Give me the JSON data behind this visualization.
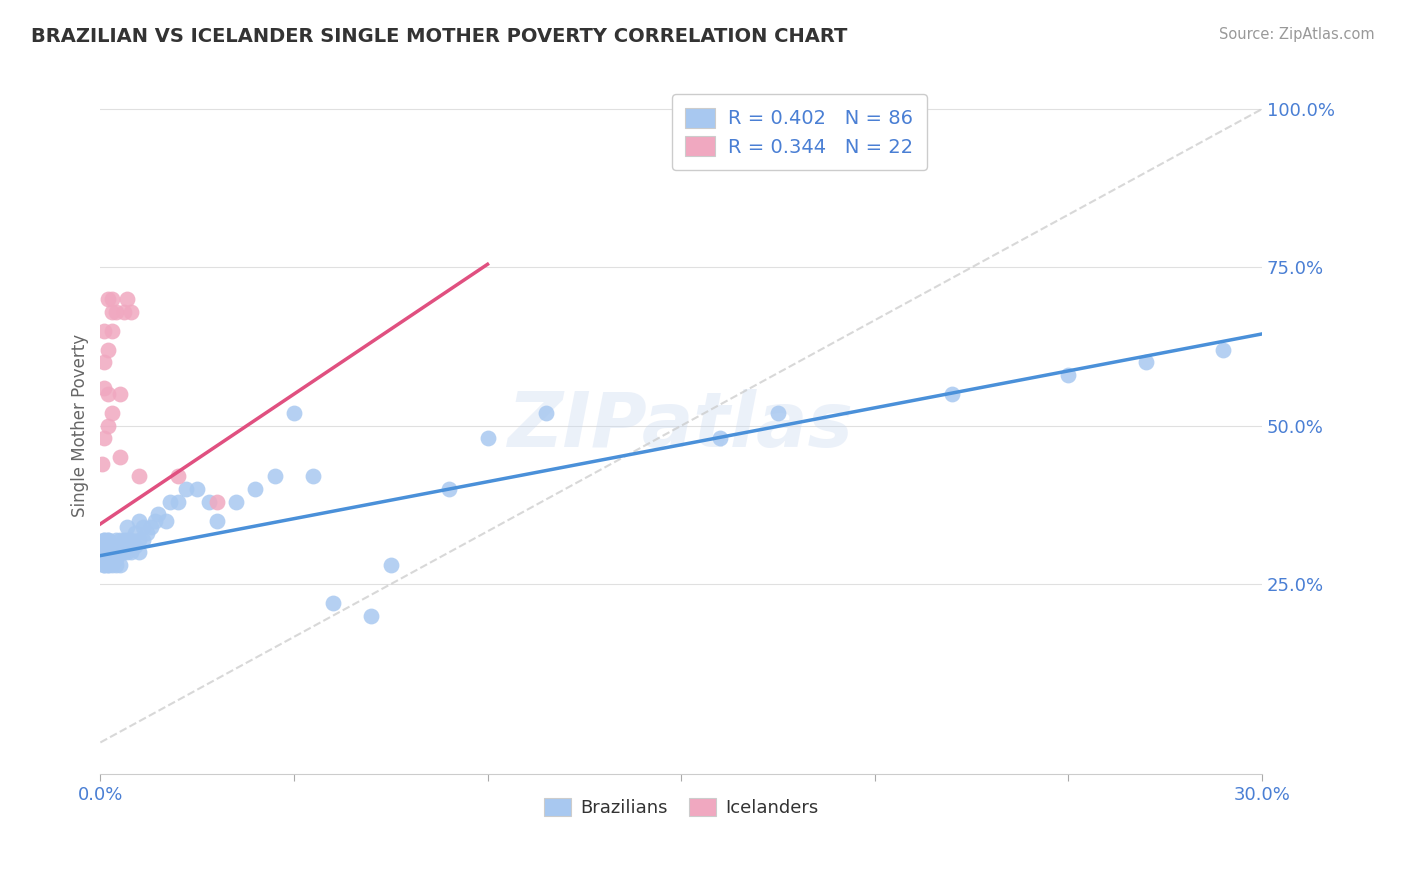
{
  "title": "BRAZILIAN VS ICELANDER SINGLE MOTHER POVERTY CORRELATION CHART",
  "source_text": "Source: ZipAtlas.com",
  "ylabel": "Single Mother Poverty",
  "watermark": "ZIPatlas",
  "xlim": [
    0.0,
    0.3
  ],
  "ylim": [
    -0.05,
    1.05
  ],
  "plot_ylim": [
    -0.05,
    1.05
  ],
  "xticks": [
    0.0,
    0.05,
    0.1,
    0.15,
    0.2,
    0.25,
    0.3
  ],
  "xticklabels": [
    "0.0%",
    "",
    "",
    "",
    "",
    "",
    "30.0%"
  ],
  "yticks_right": [
    0.25,
    0.5,
    0.75,
    1.0
  ],
  "ytick_right_labels": [
    "25.0%",
    "50.0%",
    "75.0%",
    "100.0%"
  ],
  "brazil_R": 0.402,
  "brazil_N": 86,
  "iceland_R": 0.344,
  "iceland_N": 22,
  "brazil_color": "#a8c8f0",
  "iceland_color": "#f0a8c0",
  "brazil_line_color": "#4a90d9",
  "iceland_line_color": "#e05080",
  "ref_line_color": "#c8c8c8",
  "legend_text_color": "#4a7fd4",
  "title_color": "#333333",
  "background_color": "#ffffff",
  "grid_color": "#e0e0e0",
  "brazil_line_x": [
    0.0,
    0.3
  ],
  "brazil_line_y": [
    0.295,
    0.645
  ],
  "iceland_line_x": [
    0.0,
    0.1
  ],
  "iceland_line_y": [
    0.345,
    0.755
  ],
  "ref_line_x": [
    0.0,
    0.3
  ],
  "ref_line_y": [
    0.0,
    1.0
  ],
  "brazil_scatter_x": [
    0.0005,
    0.001,
    0.001,
    0.001,
    0.001,
    0.001,
    0.001,
    0.001,
    0.001,
    0.001,
    0.001,
    0.002,
    0.002,
    0.002,
    0.002,
    0.002,
    0.002,
    0.002,
    0.002,
    0.002,
    0.002,
    0.002,
    0.003,
    0.003,
    0.003,
    0.003,
    0.003,
    0.003,
    0.003,
    0.003,
    0.004,
    0.004,
    0.004,
    0.004,
    0.004,
    0.004,
    0.004,
    0.004,
    0.005,
    0.005,
    0.005,
    0.005,
    0.005,
    0.006,
    0.006,
    0.006,
    0.007,
    0.007,
    0.007,
    0.008,
    0.008,
    0.009,
    0.009,
    0.01,
    0.01,
    0.01,
    0.011,
    0.011,
    0.012,
    0.013,
    0.014,
    0.015,
    0.017,
    0.018,
    0.02,
    0.022,
    0.025,
    0.028,
    0.03,
    0.035,
    0.04,
    0.045,
    0.05,
    0.055,
    0.06,
    0.07,
    0.075,
    0.09,
    0.1,
    0.115,
    0.16,
    0.175,
    0.22,
    0.25,
    0.27,
    0.29
  ],
  "brazil_scatter_y": [
    0.3,
    0.28,
    0.3,
    0.32,
    0.3,
    0.28,
    0.31,
    0.29,
    0.3,
    0.32,
    0.29,
    0.28,
    0.3,
    0.32,
    0.3,
    0.31,
    0.29,
    0.3,
    0.31,
    0.28,
    0.3,
    0.32,
    0.28,
    0.3,
    0.31,
    0.3,
    0.29,
    0.3,
    0.31,
    0.29,
    0.28,
    0.3,
    0.31,
    0.32,
    0.3,
    0.29,
    0.31,
    0.3,
    0.3,
    0.32,
    0.3,
    0.28,
    0.31,
    0.3,
    0.32,
    0.31,
    0.3,
    0.32,
    0.34,
    0.3,
    0.32,
    0.31,
    0.33,
    0.3,
    0.32,
    0.35,
    0.32,
    0.34,
    0.33,
    0.34,
    0.35,
    0.36,
    0.35,
    0.38,
    0.38,
    0.4,
    0.4,
    0.38,
    0.35,
    0.38,
    0.4,
    0.42,
    0.52,
    0.42,
    0.22,
    0.2,
    0.28,
    0.4,
    0.48,
    0.52,
    0.48,
    0.52,
    0.55,
    0.58,
    0.6,
    0.62
  ],
  "iceland_scatter_x": [
    0.0005,
    0.001,
    0.001,
    0.001,
    0.001,
    0.002,
    0.002,
    0.002,
    0.002,
    0.003,
    0.003,
    0.003,
    0.003,
    0.004,
    0.005,
    0.005,
    0.006,
    0.007,
    0.008,
    0.01,
    0.02,
    0.03
  ],
  "iceland_scatter_y": [
    0.44,
    0.56,
    0.6,
    0.65,
    0.48,
    0.55,
    0.62,
    0.7,
    0.5,
    0.68,
    0.52,
    0.65,
    0.7,
    0.68,
    0.55,
    0.45,
    0.68,
    0.7,
    0.68,
    0.42,
    0.42,
    0.38
  ]
}
